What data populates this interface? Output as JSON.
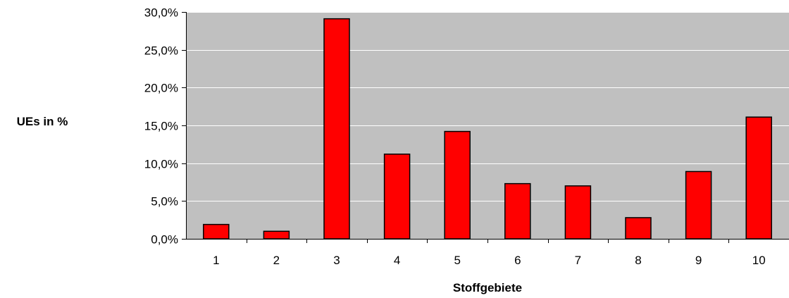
{
  "chart_data": {
    "type": "bar",
    "title": "",
    "xlabel": "Stoffgebiete",
    "ylabel": "UEs in %",
    "categories": [
      "1",
      "2",
      "3",
      "4",
      "5",
      "6",
      "7",
      "8",
      "9",
      "10"
    ],
    "series": [
      {
        "values": [
          1.9,
          1.0,
          29.1,
          11.2,
          14.2,
          7.3,
          7.0,
          2.8,
          8.9,
          16.1
        ]
      }
    ],
    "ylim": [
      0,
      30
    ],
    "yticks": [
      0,
      5,
      10,
      15,
      20,
      25,
      30
    ],
    "ytick_labels": [
      "0,0%",
      "5,0%",
      "10,0%",
      "15,0%",
      "20,0%",
      "25,0%",
      "30,0%"
    ],
    "grid": true,
    "legend": "none",
    "colors": {
      "plot_background": "#C0C0C0",
      "bar_fill": "#FF0000",
      "bar_stroke": "#000000",
      "gridline": "#FFFFFF"
    }
  }
}
